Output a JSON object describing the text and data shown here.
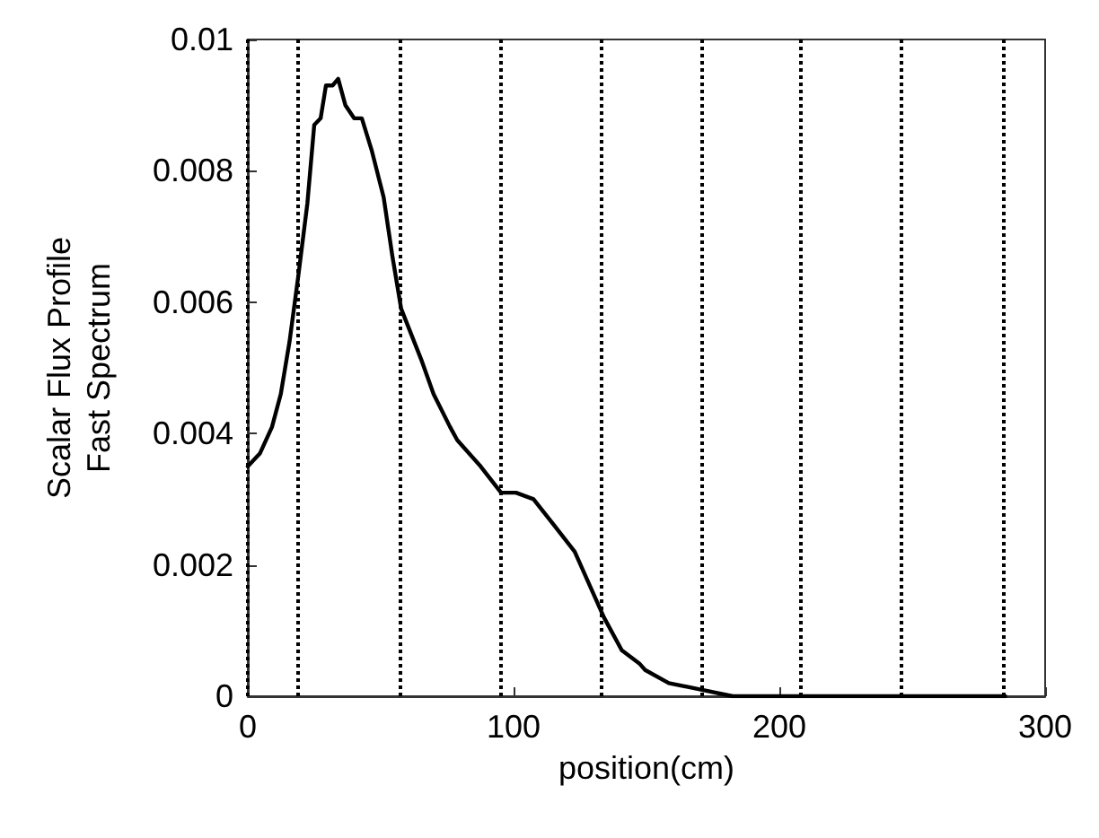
{
  "chart_data": {
    "type": "line",
    "xlabel": "position(cm)",
    "ylabel": "Scalar Flux Profile\nFast Spectrum",
    "xlim": [
      0,
      300
    ],
    "xticks": [
      0,
      100,
      200,
      300
    ],
    "ylim": [
      0,
      0.01
    ],
    "yticks": [
      0,
      0.002,
      0.004,
      0.006,
      0.008,
      0.01
    ],
    "grid": false,
    "marker": "none",
    "line_style": "solid",
    "series": [
      {
        "color": "#000000",
        "x": [
          0,
          4.6,
          9.1,
          12.4,
          15.7,
          19,
          22.4,
          25,
          27.4,
          29.4,
          31.9,
          34,
          36.7,
          40,
          42.9,
          46.7,
          51.1,
          54.4,
          57.7,
          65.5,
          69.9,
          76.1,
          78.8,
          87.6,
          95.3,
          100.9,
          107.5,
          115.3,
          123,
          129.6,
          134,
          140.7,
          147.3,
          149.5,
          158.4,
          170.5,
          182.5,
          209,
          285
        ],
        "values": [
          0.0035,
          0.0037,
          0.0041,
          0.0046,
          0.0054,
          0.0064,
          0.0075,
          0.0087,
          0.0088,
          0.0093,
          0.0093,
          0.0094,
          0.009,
          0.0088,
          0.0088,
          0.0083,
          0.0076,
          0.0067,
          0.0059,
          0.0051,
          0.0046,
          0.0041,
          0.0039,
          0.0035,
          0.0031,
          0.0031,
          0.003,
          0.0026,
          0.0022,
          0.0016,
          0.0012,
          0.0007,
          0.0005,
          0.0004,
          0.0002,
          0.0001,
          0,
          0,
          0
        ]
      }
    ],
    "ref_lines": [
      {
        "axis": "x",
        "value": 0,
        "color": "#000000",
        "line_style": "dotted"
      },
      {
        "axis": "x",
        "value": 19,
        "color": "#000000",
        "line_style": "dotted"
      },
      {
        "axis": "x",
        "value": 57,
        "color": "#000000",
        "line_style": "dotted"
      },
      {
        "axis": "x",
        "value": 95,
        "color": "#000000",
        "line_style": "dotted"
      },
      {
        "axis": "x",
        "value": 133,
        "color": "#000000",
        "line_style": "dotted"
      },
      {
        "axis": "x",
        "value": 171,
        "color": "#000000",
        "line_style": "dotted"
      },
      {
        "axis": "x",
        "value": 208,
        "color": "#000000",
        "line_style": "dotted"
      },
      {
        "axis": "x",
        "value": 246,
        "color": "#000000",
        "line_style": "dotted"
      },
      {
        "axis": "x",
        "value": 284,
        "color": "#000000",
        "line_style": "dotted"
      }
    ]
  }
}
